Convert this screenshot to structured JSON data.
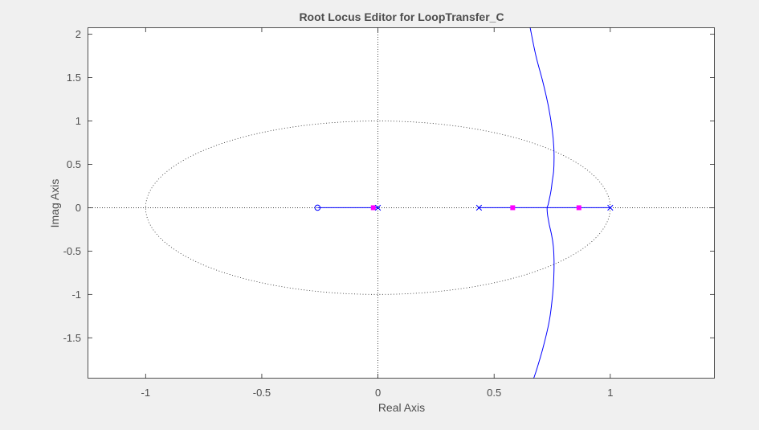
{
  "chart_data": {
    "type": "scatter",
    "title": "Root Locus Editor for LoopTransfer_C",
    "xlabel": "Real Axis",
    "ylabel": "Imag Axis",
    "xlim": [
      -1.25,
      1.45
    ],
    "ylim": [
      -1.97,
      2.08
    ],
    "xticks": [
      -1,
      -0.5,
      0,
      0.5,
      1
    ],
    "xtick_labels": [
      "-1",
      "-0.5",
      "0",
      "0.5",
      "1"
    ],
    "yticks": [
      2,
      1.5,
      1,
      0.5,
      0,
      -0.5,
      -1,
      -1.5
    ],
    "ytick_labels": [
      "2",
      "1.5",
      "1",
      "0.5",
      "0",
      "-0.5",
      "-1",
      "-1.5"
    ],
    "grid": false,
    "unit_circle": true,
    "open_loop_poles": [
      [
        0,
        0
      ],
      [
        0.435,
        0
      ],
      [
        1,
        0
      ]
    ],
    "open_loop_zeros": [
      [
        -0.26,
        0
      ]
    ],
    "closed_loop_poles": [
      [
        -0.02,
        0
      ],
      [
        0.58,
        0
      ],
      [
        0.865,
        0
      ]
    ],
    "locus_segments": [
      {
        "x": [
          -0.26,
          0
        ],
        "y": [
          0,
          0
        ]
      },
      {
        "x": [
          0.435,
          1
        ],
        "y": [
          0,
          0
        ]
      }
    ],
    "locus_branch": {
      "x": [
        0.655,
        0.68,
        0.71,
        0.735,
        0.75,
        0.757,
        0.758,
        0.756,
        0.75,
        0.745,
        0.738,
        0.732,
        0.728,
        0.73,
        0.738,
        0.748,
        0.755,
        0.758,
        0.757,
        0.752,
        0.738,
        0.712,
        0.685,
        0.67
      ],
      "y": [
        2.08,
        1.75,
        1.45,
        1.15,
        0.9,
        0.7,
        0.55,
        0.42,
        0.3,
        0.2,
        0.1,
        0.03,
        0,
        -0.08,
        -0.2,
        -0.32,
        -0.45,
        -0.6,
        -0.8,
        -1.0,
        -1.3,
        -1.6,
        -1.85,
        -1.97
      ]
    },
    "colors": {
      "locus": "#0000ff",
      "closed_loop": "#ff00ff",
      "axis": "#262626",
      "text": "#4d4d4d",
      "background": "#f0f0f0",
      "plot_area": "#ffffff"
    }
  }
}
